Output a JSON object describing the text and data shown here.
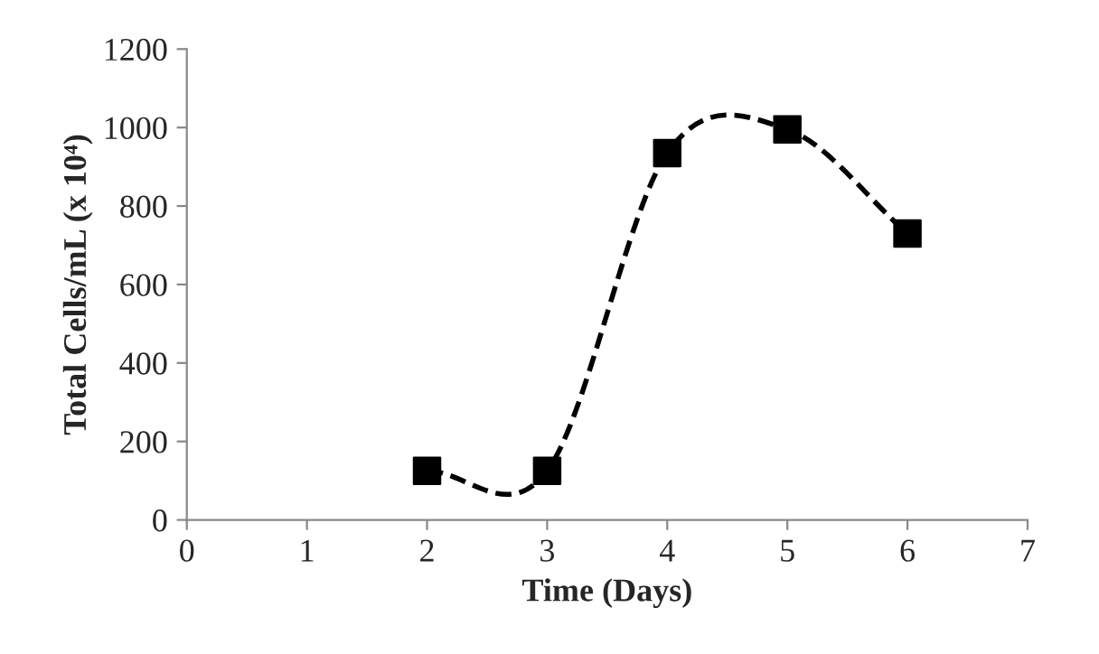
{
  "chart_data": {
    "type": "line",
    "xlabel": "Time (Days)",
    "ylabel": "Total Cells/mL (x 10⁴)",
    "x": [
      2,
      3,
      4,
      5,
      6
    ],
    "series": [
      {
        "color": "#000000",
        "values": [
          125,
          125,
          935,
          995,
          730
        ]
      }
    ],
    "marker": "square",
    "line_style": "dashed",
    "xlim": [
      0,
      7
    ],
    "xticks": [
      0,
      1,
      2,
      3,
      4,
      5,
      6,
      7
    ],
    "ylim": [
      0,
      1200
    ],
    "yticks": [
      0,
      200,
      400,
      600,
      800,
      1000,
      1200
    ],
    "grid": false,
    "legend": false
  }
}
